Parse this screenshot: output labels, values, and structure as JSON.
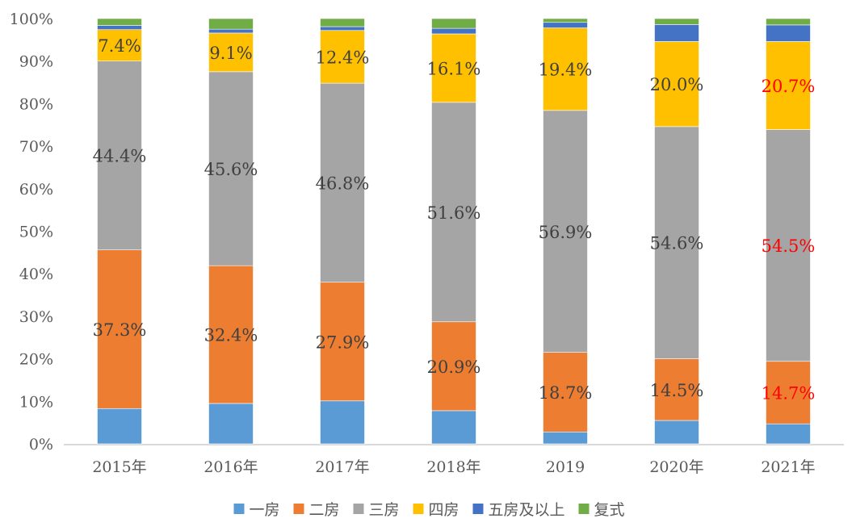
{
  "chart_data": {
    "type": "bar",
    "stacked": "percent",
    "categories": [
      "2015年",
      "2016年",
      "2017年",
      "2018年",
      "2019",
      "2020年",
      "2021年"
    ],
    "ylim": [
      0,
      100
    ],
    "yticks": [
      "0%",
      "10%",
      "20%",
      "30%",
      "40%",
      "50%",
      "60%",
      "70%",
      "80%",
      "90%",
      "100%"
    ],
    "grid": false,
    "legend_position": "bottom",
    "series": [
      {
        "name": "一房",
        "color": "#5B9BD5",
        "values": [
          8.3,
          9.5,
          10.1,
          7.8,
          2.8,
          5.5,
          4.7
        ],
        "labels": [
          null,
          null,
          null,
          null,
          null,
          null,
          null
        ]
      },
      {
        "name": "二房",
        "color": "#ED7D31",
        "values": [
          37.3,
          32.4,
          27.9,
          20.9,
          18.7,
          14.5,
          14.7
        ],
        "labels": [
          "37.3%",
          "32.4%",
          "27.9%",
          "20.9%",
          "18.7%",
          "14.5%",
          "14.7%"
        ]
      },
      {
        "name": "三房",
        "color": "#A5A5A5",
        "values": [
          44.4,
          45.6,
          46.8,
          51.6,
          56.9,
          54.6,
          54.5
        ],
        "labels": [
          "44.4%",
          "45.6%",
          "46.8%",
          "51.6%",
          "56.9%",
          "54.6%",
          "54.5%"
        ]
      },
      {
        "name": "四房",
        "color": "#FFC000",
        "values": [
          7.4,
          9.1,
          12.4,
          16.1,
          19.4,
          20.0,
          20.7
        ],
        "labels": [
          "7.4%",
          "9.1%",
          "12.4%",
          "16.1%",
          "19.4%",
          "20.0%",
          "20.7%"
        ]
      },
      {
        "name": "五房及以上",
        "color": "#4472C4",
        "values": [
          1.0,
          0.9,
          0.9,
          1.3,
          1.3,
          4.0,
          3.9
        ],
        "labels": [
          null,
          null,
          null,
          null,
          null,
          null,
          null
        ]
      },
      {
        "name": "复式",
        "color": "#70AD47",
        "values": [
          1.6,
          2.5,
          1.9,
          2.3,
          0.9,
          1.4,
          1.5
        ],
        "labels": [
          null,
          null,
          null,
          null,
          null,
          null,
          null
        ]
      }
    ],
    "label_color": "#404040",
    "highlight_label_color": "#FF0000",
    "highlight_category": "2021年"
  }
}
